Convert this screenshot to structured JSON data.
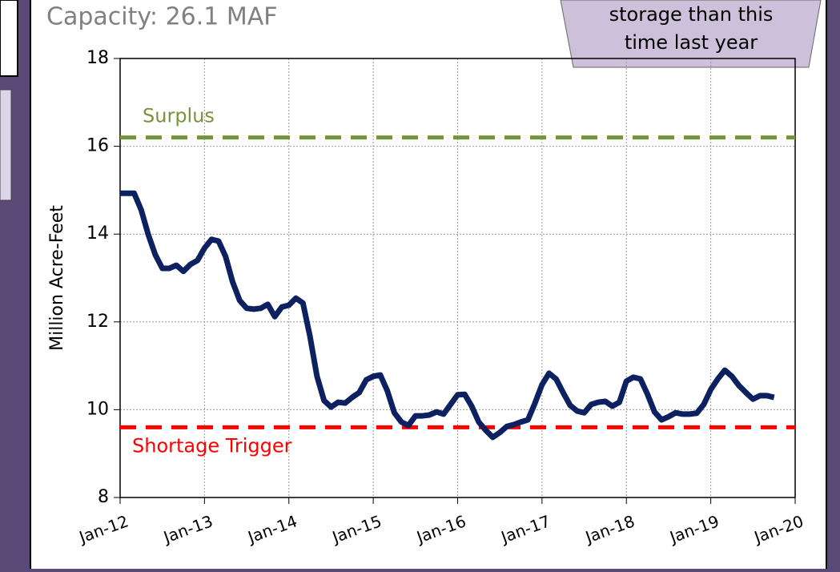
{
  "subtitle": "Capacity: 26.1 MAF",
  "callout": [
    "storage than this",
    "time last year"
  ],
  "chart_data": {
    "type": "line",
    "y_label": "Million Acre-Feet",
    "x": [
      "2012-01",
      "2012-02",
      "2012-03",
      "2012-04",
      "2012-05",
      "2012-06",
      "2012-07",
      "2012-08",
      "2012-09",
      "2012-10",
      "2012-11",
      "2012-12",
      "2013-01",
      "2013-02",
      "2013-03",
      "2013-04",
      "2013-05",
      "2013-06",
      "2013-07",
      "2013-08",
      "2013-09",
      "2013-10",
      "2013-11",
      "2013-12",
      "2014-01",
      "2014-02",
      "2014-03",
      "2014-04",
      "2014-05",
      "2014-06",
      "2014-07",
      "2014-08",
      "2014-09",
      "2014-10",
      "2014-11",
      "2014-12",
      "2015-01",
      "2015-02",
      "2015-03",
      "2015-04",
      "2015-05",
      "2015-06",
      "2015-07",
      "2015-08",
      "2015-09",
      "2015-10",
      "2015-11",
      "2015-12",
      "2016-01",
      "2016-02",
      "2016-03",
      "2016-04",
      "2016-05",
      "2016-06",
      "2016-07",
      "2016-08",
      "2016-09",
      "2016-10",
      "2016-11",
      "2016-12",
      "2017-01",
      "2017-02",
      "2017-03",
      "2017-04",
      "2017-05",
      "2017-06",
      "2017-07",
      "2017-08",
      "2017-09",
      "2017-10",
      "2017-11",
      "2017-12",
      "2018-01",
      "2018-02",
      "2018-03",
      "2018-04",
      "2018-05",
      "2018-06",
      "2018-07",
      "2018-08",
      "2018-09",
      "2018-10",
      "2018-11",
      "2018-12",
      "2019-01",
      "2019-02",
      "2019-03",
      "2019-04",
      "2019-05",
      "2019-06",
      "2019-07",
      "2019-08",
      "2019-09",
      "2019-10"
    ],
    "series": [
      {
        "color": "#0d2161",
        "values": [
          14.93,
          14.93,
          14.93,
          14.55,
          13.99,
          13.53,
          13.22,
          13.22,
          13.29,
          13.15,
          13.31,
          13.4,
          13.68,
          13.88,
          13.84,
          13.49,
          12.91,
          12.49,
          12.31,
          12.29,
          12.31,
          12.4,
          12.12,
          12.34,
          12.38,
          12.54,
          12.43,
          11.67,
          10.76,
          10.21,
          10.06,
          10.17,
          10.15,
          10.28,
          10.39,
          10.68,
          10.76,
          10.79,
          10.43,
          9.93,
          9.72,
          9.64,
          9.86,
          9.86,
          9.88,
          9.95,
          9.9,
          10.12,
          10.34,
          10.35,
          10.08,
          9.72,
          9.53,
          9.37,
          9.48,
          9.62,
          9.66,
          9.72,
          9.77,
          10.15,
          10.57,
          10.83,
          10.7,
          10.39,
          10.1,
          9.97,
          9.93,
          10.12,
          10.17,
          10.19,
          10.08,
          10.17,
          10.65,
          10.74,
          10.7,
          10.35,
          9.95,
          9.77,
          9.84,
          9.93,
          9.9,
          9.9,
          9.92,
          10.12,
          10.46,
          10.7,
          10.9,
          10.76,
          10.55,
          10.39,
          10.24,
          10.32,
          10.32,
          10.28
        ]
      }
    ],
    "reference_lines": [
      {
        "label": "Surplus",
        "value": 16.2,
        "color": "#77933c"
      },
      {
        "label": "Shortage Trigger",
        "value": 9.6,
        "color": "#ff0000"
      }
    ],
    "xlim": [
      "2012-01",
      "2020-01"
    ],
    "xticks": [
      {
        "value": "2012-01",
        "label": "Jan-12"
      },
      {
        "value": "2013-01",
        "label": "Jan-13"
      },
      {
        "value": "2014-01",
        "label": "Jan-14"
      },
      {
        "value": "2015-01",
        "label": "Jan-15"
      },
      {
        "value": "2016-01",
        "label": "Jan-16"
      },
      {
        "value": "2017-01",
        "label": "Jan-17"
      },
      {
        "value": "2018-01",
        "label": "Jan-18"
      },
      {
        "value": "2019-01",
        "label": "Jan-19"
      },
      {
        "value": "2020-01",
        "label": "Jan-20"
      }
    ],
    "ylim": [
      8,
      18
    ],
    "yticks": [
      8,
      10,
      12,
      14,
      16,
      18
    ],
    "grid": true
  }
}
